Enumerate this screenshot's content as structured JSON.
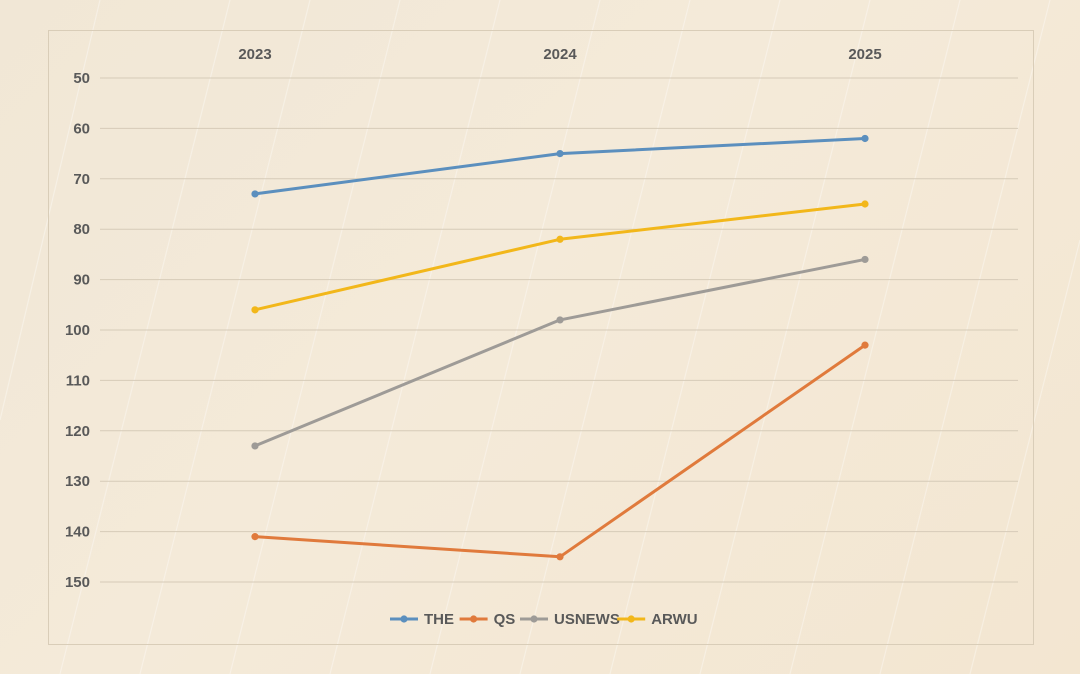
{
  "chart_data": {
    "type": "line",
    "title": "",
    "xlabel": "",
    "ylabel": "",
    "categories": [
      "2023",
      "2024",
      "2025"
    ],
    "x_axis_position": "top",
    "y_inverted": true,
    "ylim": [
      50,
      150
    ],
    "yticks": [
      50,
      60,
      70,
      80,
      90,
      100,
      110,
      120,
      130,
      140,
      150
    ],
    "grid": true,
    "legend_position": "bottom",
    "series": [
      {
        "name": "THE",
        "color": "#5b8fbe",
        "values": [
          73,
          65,
          62
        ]
      },
      {
        "name": "QS",
        "color": "#e07a3c",
        "values": [
          141,
          145,
          103
        ]
      },
      {
        "name": "USNEWS",
        "color": "#9e9b97",
        "values": [
          123,
          98,
          86
        ]
      },
      {
        "name": "ARWU",
        "color": "#f2b71a",
        "values": [
          96,
          82,
          75
        ]
      }
    ]
  }
}
